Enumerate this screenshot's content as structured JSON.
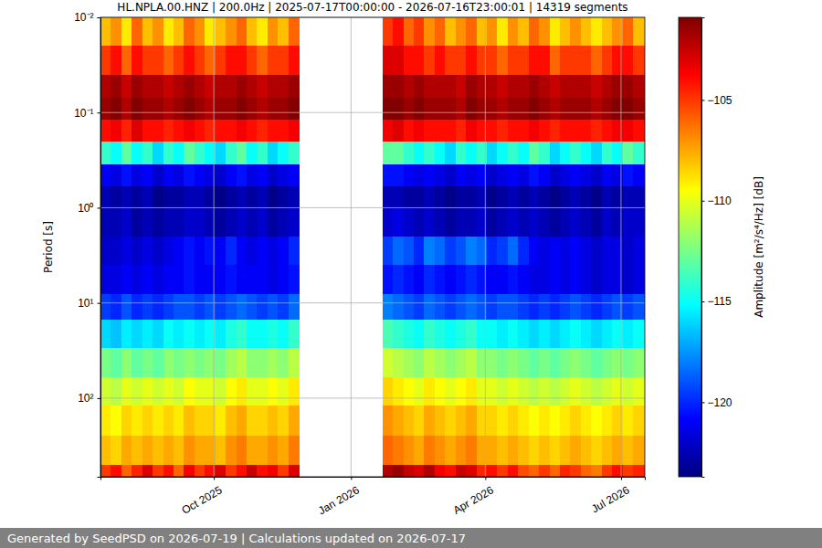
{
  "chart_data": {
    "type": "heatmap",
    "title": "HL.NPLA.00.HNZ | 200.0Hz | 2025-07-17T00:00:00 - 2026-07-16T23:00:01 | 14319 segments",
    "ylabel": "Period [s]",
    "log": "y",
    "grid": true,
    "xlim": [
      "2025-07-17T00:00:00",
      "2026-07-16T23:00:01"
    ],
    "xticks": [
      {
        "value": "2025-10-01",
        "label": "Oct 2025"
      },
      {
        "value": "2026-01-01",
        "label": "Jan 2026"
      },
      {
        "value": "2026-04-01",
        "label": "Apr 2026"
      },
      {
        "value": "2026-07-01",
        "label": "Jul 2026"
      }
    ],
    "ylim": [
      0.01,
      670
    ],
    "yticks": [
      {
        "value": 0.01,
        "label": "10⁻²"
      },
      {
        "value": 0.1,
        "label": "10⁻¹"
      },
      {
        "value": 1,
        "label": "10⁰"
      },
      {
        "value": 10,
        "label": "10¹"
      },
      {
        "value": 100,
        "label": "10²"
      }
    ],
    "x": [
      "2025-07-17",
      "2025-07-24",
      "2025-07-31",
      "2025-08-07",
      "2025-08-14",
      "2025-08-21",
      "2025-08-28",
      "2025-09-04",
      "2025-09-11",
      "2025-09-18",
      "2025-09-25",
      "2025-10-02",
      "2025-10-09",
      "2025-10-16",
      "2025-10-23",
      "2025-10-30",
      "2025-11-06",
      "2025-11-13",
      "2025-11-20",
      "2025-11-27",
      "2025-12-04",
      "2025-12-11",
      "2025-12-18",
      "2025-12-25",
      "2026-01-01",
      "2026-01-08",
      "2026-01-15",
      "2026-01-22",
      "2026-01-29",
      "2026-02-05",
      "2026-02-12",
      "2026-02-19",
      "2026-02-26",
      "2026-03-05",
      "2026-03-12",
      "2026-03-19",
      "2026-03-26",
      "2026-04-02",
      "2026-04-09",
      "2026-04-16",
      "2026-04-23",
      "2026-04-30",
      "2026-05-07",
      "2026-05-14",
      "2026-05-21",
      "2026-05-28",
      "2026-06-04",
      "2026-06-11",
      "2026-06-18",
      "2026-06-25",
      "2026-07-02",
      "2026-07-09",
      "2026-07-16T23:00:01"
    ],
    "y": [
      0.01,
      0.02,
      0.04,
      0.07,
      0.12,
      0.2,
      0.35,
      0.6,
      1,
      2,
      4,
      8,
      15,
      30,
      60,
      120,
      250,
      500,
      670
    ],
    "values": [
      [
        -108,
        -107,
        -109,
        -106,
        -108,
        -107,
        -109,
        -108,
        -106,
        -107,
        -109,
        -108,
        -107,
        -106,
        -108,
        -109,
        -107,
        -108,
        -106,
        null,
        null,
        null,
        null,
        null,
        null,
        null,
        null,
        -105,
        -104,
        -106,
        -105,
        -107,
        -106,
        -108,
        -107,
        -106,
        -108,
        -107,
        -109,
        -107,
        -108,
        -106,
        -107,
        -109,
        -108,
        -107,
        -108,
        -109,
        -108,
        -107,
        -106,
        -108
      ],
      [
        -105,
        -104,
        -106,
        -104,
        -105,
        -105,
        -106,
        -105,
        -104,
        -105,
        -106,
        -105,
        -104,
        -104,
        -105,
        -106,
        -105,
        -105,
        -104,
        null,
        null,
        null,
        null,
        null,
        null,
        null,
        null,
        -103,
        -103,
        -104,
        -104,
        -105,
        -104,
        -105,
        -105,
        -104,
        -105,
        -105,
        -106,
        -105,
        -105,
        -104,
        -104,
        -106,
        -105,
        -105,
        -105,
        -106,
        -105,
        -104,
        -104,
        -105
      ],
      [
        -102,
        -101.5,
        -102.5,
        -101.5,
        -102,
        -102,
        -102.5,
        -102,
        -101.5,
        -102,
        -102.5,
        -102,
        -102,
        -101.5,
        -102,
        -102.5,
        -102,
        -102,
        -101.5,
        null,
        null,
        null,
        null,
        null,
        null,
        null,
        null,
        -101.5,
        -101.5,
        -102,
        -101.5,
        -102,
        -102,
        -102,
        -102.5,
        -101.5,
        -102,
        -102,
        -102.5,
        -102,
        -102,
        -101.5,
        -102,
        -102.5,
        -102,
        -102,
        -102,
        -102.5,
        -102,
        -101.5,
        -101.5,
        -102
      ],
      [
        -101.5,
        -101,
        -102,
        -101,
        -101.5,
        -101.5,
        -102,
        -101.5,
        -101,
        -101.5,
        -102,
        -101.5,
        -101.5,
        -101,
        -101.5,
        -102,
        -101.5,
        -101.5,
        -101,
        null,
        null,
        null,
        null,
        null,
        null,
        null,
        null,
        -101,
        -101,
        -101.5,
        -101,
        -101.5,
        -101.5,
        -101.5,
        -102,
        -101,
        -101.5,
        -101.5,
        -102,
        -101.5,
        -101.5,
        -101,
        -101.5,
        -102,
        -101.5,
        -101.5,
        -101.5,
        -102,
        -101.5,
        -101,
        -101,
        -101.5
      ],
      [
        -104,
        -103.5,
        -104.5,
        -103,
        -104,
        -104,
        -104.5,
        -104,
        -103.5,
        -104,
        -104.5,
        -104,
        -104,
        -103.5,
        -104,
        -104.5,
        -104,
        -104,
        -103.5,
        null,
        null,
        null,
        null,
        null,
        null,
        null,
        null,
        -103.5,
        -103,
        -104,
        -103.5,
        -104,
        -104,
        -104,
        -104.5,
        -103.5,
        -104,
        -104,
        -104.5,
        -104,
        -104,
        -103.5,
        -104,
        -104.5,
        -104,
        -104,
        -104,
        -104.5,
        -104,
        -103.5,
        -103.5,
        -104
      ],
      [
        -114,
        -115,
        -113,
        -115,
        -114,
        -116,
        -114,
        -115,
        -113,
        -114,
        -115,
        -116,
        -114,
        -113,
        -115,
        -114,
        -116,
        -115,
        -114,
        null,
        null,
        null,
        null,
        null,
        null,
        null,
        null,
        -113,
        -113,
        -114,
        -115,
        -114,
        -115,
        -116,
        -114,
        -115,
        -114,
        -116,
        -115,
        -114,
        -115,
        -113,
        -114,
        -116,
        -115,
        -114,
        -115,
        -116,
        -114,
        -115,
        -113,
        -114
      ],
      [
        -121,
        -121.5,
        -120.5,
        -121.5,
        -121,
        -122,
        -121,
        -121.5,
        -120.5,
        -121,
        -121.5,
        -122,
        -121,
        -120.5,
        -121.5,
        -121,
        -122,
        -121.5,
        -121,
        null,
        null,
        null,
        null,
        null,
        null,
        null,
        null,
        -120.5,
        -120.5,
        -121,
        -121.5,
        -121,
        -121.5,
        -122,
        -121,
        -121.5,
        -121,
        -122,
        -121.5,
        -121,
        -121.5,
        -120.5,
        -121,
        -122,
        -121.5,
        -121,
        -121.5,
        -122,
        -121,
        -121.5,
        -120.5,
        -121
      ],
      [
        -122.5,
        -123,
        -122.5,
        -123,
        -122.5,
        -123.5,
        -123,
        -123,
        -122.5,
        -122.5,
        -123,
        -123.5,
        -123,
        -122.5,
        -123,
        -122.5,
        -123.5,
        -123,
        -122.5,
        null,
        null,
        null,
        null,
        null,
        null,
        null,
        null,
        -122.5,
        -122.5,
        -123,
        -123,
        -122.5,
        -123,
        -123.5,
        -123,
        -123,
        -122.5,
        -123.5,
        -123,
        -122.5,
        -123,
        -122.5,
        -123,
        -123.5,
        -123,
        -122.5,
        -123,
        -123.5,
        -122.5,
        -123,
        -122.5,
        -122.5
      ],
      [
        -122.5,
        -122.5,
        -122,
        -123,
        -122.5,
        -123,
        -122.5,
        -122.5,
        -122,
        -122,
        -122.5,
        -123,
        -122.5,
        -122,
        -122.5,
        -122,
        -123,
        -122.5,
        -122,
        null,
        null,
        null,
        null,
        null,
        null,
        null,
        null,
        -122,
        -121.5,
        -122,
        -122.5,
        -122,
        -122.5,
        -123,
        -122.5,
        -122.5,
        -122,
        -123,
        -122.5,
        -122,
        -122.5,
        -122,
        -122.5,
        -123,
        -122.5,
        -122,
        -122.5,
        -123,
        -122,
        -122.5,
        -122,
        -122
      ],
      [
        -122,
        -122,
        -121.5,
        -122,
        -121.5,
        -122,
        -121.5,
        -121,
        -120.5,
        -121,
        -120.5,
        -121,
        -120,
        -121,
        -121.5,
        -121,
        -121.5,
        -121,
        -120,
        null,
        null,
        null,
        null,
        null,
        null,
        null,
        null,
        -119.5,
        -118.5,
        -119,
        -120,
        -118,
        -118.5,
        -119.5,
        -119,
        -118,
        -118.5,
        -120,
        -119.5,
        -118.5,
        -120,
        -121,
        -121.5,
        -121,
        -121.5,
        -121,
        -121.5,
        -122,
        -121.5,
        -121.5,
        -122,
        -121.5
      ],
      [
        -121.5,
        -121.5,
        -121,
        -121.5,
        -121,
        -121.5,
        -121,
        -121,
        -120.5,
        -121,
        -121,
        -121,
        -120.5,
        -121,
        -121,
        -121,
        -121.5,
        -121,
        -120.5,
        null,
        null,
        null,
        null,
        null,
        null,
        null,
        null,
        -120.5,
        -120,
        -120.5,
        -121,
        -120,
        -120.5,
        -121,
        -120.5,
        -120,
        -120.5,
        -121,
        -121,
        -120.5,
        -121,
        -121.5,
        -121.5,
        -121,
        -121.5,
        -121,
        -121.5,
        -122,
        -121.5,
        -121.5,
        -122,
        -121.5
      ],
      [
        -119.5,
        -120,
        -119,
        -120,
        -119.5,
        -120,
        -119.5,
        -119,
        -119,
        -119.5,
        -119,
        -119.5,
        -119,
        -118.5,
        -119,
        -119.5,
        -119,
        -119.5,
        -118.5,
        null,
        null,
        null,
        null,
        null,
        null,
        null,
        null,
        -118,
        -118.5,
        -119,
        -119.5,
        -118.5,
        -119,
        -119.5,
        -119,
        -118.5,
        -119,
        -119.5,
        -119,
        -119,
        -119.5,
        -120,
        -119.5,
        -120,
        -119.5,
        -119,
        -119.5,
        -120,
        -119.5,
        -119,
        -119.5,
        -119
      ],
      [
        -116,
        -116.5,
        -115.5,
        -116,
        -115.5,
        -116,
        -115,
        -115.5,
        -115,
        -115.5,
        -115,
        -115.5,
        -114.5,
        -114,
        -115,
        -115,
        -114.5,
        -115,
        -114,
        null,
        null,
        null,
        null,
        null,
        null,
        null,
        null,
        -113.5,
        -114,
        -114.5,
        -115,
        -114,
        -114.5,
        -115,
        -114.5,
        -114,
        -115,
        -115,
        -115.5,
        -115,
        -115.5,
        -116,
        -115.5,
        -116,
        -115.5,
        -115,
        -115.5,
        -116,
        -115.5,
        -115,
        -115.5,
        -115
      ],
      [
        -112.5,
        -113,
        -112,
        -113,
        -112.5,
        -113,
        -112,
        -112.5,
        -112,
        -112.5,
        -112,
        -112.5,
        -111.5,
        -111,
        -112,
        -112,
        -111.5,
        -112,
        -111,
        null,
        null,
        null,
        null,
        null,
        null,
        null,
        null,
        -110.5,
        -111,
        -111.5,
        -112,
        -111,
        -111.5,
        -112,
        -111.5,
        -111,
        -112,
        -112,
        -112.5,
        -112,
        -112.5,
        -113,
        -112.5,
        -113,
        -112.5,
        -112,
        -112.5,
        -113,
        -112.5,
        -112,
        -112.5,
        -112
      ],
      [
        -110.5,
        -111,
        -110,
        -110.5,
        -110,
        -110.5,
        -110,
        -110.5,
        -109.5,
        -110,
        -110,
        -110.5,
        -109.5,
        -109,
        -110,
        -110,
        -109.5,
        -110,
        -109,
        null,
        null,
        null,
        null,
        null,
        null,
        null,
        null,
        -108.5,
        -109,
        -109.5,
        -110,
        -109,
        -109.5,
        -110,
        -109.5,
        -109,
        -110,
        -110,
        -110.5,
        -110,
        -110.5,
        -111,
        -110.5,
        -111,
        -110.5,
        -110,
        -110.5,
        -111,
        -110.5,
        -110,
        -110.5,
        -110
      ],
      [
        -109,
        -109.5,
        -108.5,
        -109,
        -108.5,
        -109,
        -108.5,
        -109,
        -108,
        -108.5,
        -108.5,
        -109,
        -108,
        -107.5,
        -108.5,
        -108.5,
        -108,
        -108.5,
        -107.5,
        null,
        null,
        null,
        null,
        null,
        null,
        null,
        null,
        -107,
        -107.5,
        -108,
        -108.5,
        -107.5,
        -108,
        -108.5,
        -108,
        -107.5,
        -108.5,
        -108.5,
        -109,
        -108.5,
        -109,
        -109.5,
        -109,
        -109.5,
        -109,
        -108.5,
        -109,
        -109.5,
        -109,
        -108.5,
        -109,
        -108.5
      ],
      [
        -108,
        -108.5,
        -107.5,
        -108,
        -107.5,
        -108,
        -107.5,
        -108,
        -107,
        -107.5,
        -107.5,
        -108,
        -107,
        -106.5,
        -107.5,
        -107.5,
        -107,
        -107.5,
        -106.5,
        null,
        null,
        null,
        null,
        null,
        null,
        null,
        null,
        -106,
        -106.5,
        -107,
        -107.5,
        -106.5,
        -107,
        -107.5,
        -107,
        -106.5,
        -107.5,
        -107.5,
        -108,
        -107.5,
        -108,
        -108.5,
        -108,
        -108.5,
        -108,
        -107.5,
        -108,
        -108.5,
        -108,
        -107.5,
        -108,
        -107.5
      ],
      [
        -105,
        -104,
        -106,
        -104.5,
        -103,
        -105,
        -104,
        -106,
        -103.5,
        -105,
        -104,
        -103,
        -105,
        -104,
        -102.5,
        -104,
        -103.5,
        -105,
        -103,
        null,
        null,
        null,
        null,
        null,
        null,
        null,
        null,
        -102,
        -101.5,
        -102.5,
        -103,
        -102,
        -103.5,
        -104,
        -102.5,
        -103,
        -104.5,
        -104,
        -105,
        -104,
        -105.5,
        -106,
        -105,
        -106,
        -104.5,
        -105,
        -106,
        -106.5,
        -105,
        -104,
        -105,
        -104.5
      ]
    ],
    "colorbar": {
      "label": "Amplitude [m²/s⁴/Hz] [dB]",
      "range": [
        -123.7,
        -100.9
      ],
      "ticks": [
        {
          "value": -105,
          "label": "−105"
        },
        {
          "value": -110,
          "label": "−110"
        },
        {
          "value": -115,
          "label": "−115"
        },
        {
          "value": -120,
          "label": "−120"
        }
      ]
    }
  },
  "footer": "Generated by SeedPSD on 2026-07-19 | Calculations updated on 2026-07-17"
}
